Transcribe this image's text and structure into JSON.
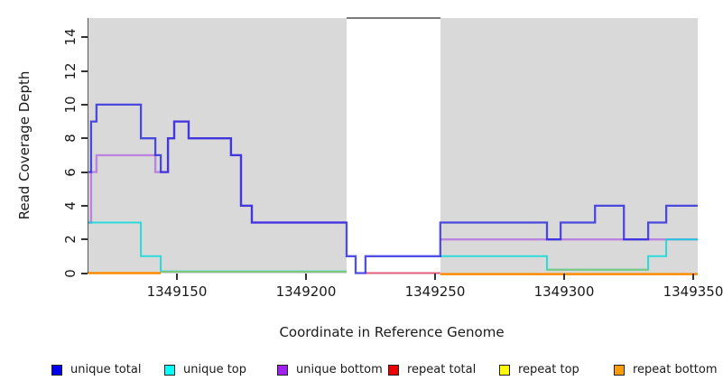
{
  "y_axis": {
    "title": "Read Coverage Depth",
    "ticks": [
      0,
      2,
      4,
      6,
      8,
      10,
      12,
      14
    ]
  },
  "x_axis": {
    "title": "Coordinate in Reference Genome",
    "ticks": [
      1349150,
      1349200,
      1349250,
      1349300,
      1349350
    ]
  },
  "legend": {
    "items": [
      {
        "label": "unique total",
        "color": "#0000ee",
        "x": 57
      },
      {
        "label": "unique top",
        "color": "#00ffff",
        "x": 182
      },
      {
        "label": "unique bottom",
        "color": "#a020f0",
        "x": 307
      },
      {
        "label": "repeat total",
        "color": "#ee0000",
        "x": 430
      },
      {
        "label": "repeat top",
        "color": "#ffff00",
        "x": 553
      },
      {
        "label": "repeat bottom",
        "color": "#ff9d00",
        "x": 680
      }
    ]
  },
  "chart_data": {
    "type": "line",
    "style": "step",
    "title": "",
    "xlabel": "Coordinate in Reference Genome",
    "ylabel": "Read Coverage Depth",
    "x_range": [
      1349115.4,
      1349351.4
    ],
    "y_range": [
      0,
      15.1
    ],
    "panel_bg": "#d9d9d9",
    "grid": false,
    "highlight_band": {
      "meaning": "repeat-region (white mask over panel)",
      "x_start": 1349215.4,
      "x_end": 1349251.7,
      "fill": "#ffffff",
      "top_border_color": "#7a7a7a"
    },
    "series": [
      {
        "name": "repeat bottom (left)",
        "color": "#ff8c00",
        "width": 2.5,
        "opacity": 1,
        "segments": [
          [
            [
              1349115.4,
              0
            ],
            [
              1349143.4,
              0
            ]
          ]
        ]
      },
      {
        "name": "repeat bottom (right)",
        "color": "#ff8c00",
        "width": 2.5,
        "opacity": 1,
        "segments": [
          [
            [
              1349251.7,
              -0.06
            ],
            [
              1349351.4,
              -0.06
            ]
          ]
        ]
      },
      {
        "name": "repeat total (band floor)",
        "color": "#dd5f80",
        "width": 2,
        "opacity": 1,
        "segments": [
          [
            [
              1349222.7,
              0
            ],
            [
              1349251.7,
              0
            ]
          ]
        ]
      },
      {
        "name": "unique bottom",
        "color": "#a84fe0",
        "width": 2.4,
        "opacity": 0.62,
        "segments": [
          [
            [
              1349115.4,
              3
            ],
            [
              1349116.4,
              6
            ],
            [
              1349118.5,
              7
            ],
            [
              1349141.3,
              6
            ],
            [
              1349146.2,
              8
            ],
            [
              1349148.6,
              9
            ],
            [
              1349154.2,
              8
            ],
            [
              1349170.6,
              7
            ],
            [
              1349174.5,
              4
            ],
            [
              1349178.7,
              3
            ],
            [
              1349215.4,
              3
            ]
          ],
          [
            [
              1349251.7,
              2
            ],
            [
              1349351.4,
              2
            ]
          ]
        ]
      },
      {
        "name": "unique top",
        "color": "#00d8d8",
        "width": 2,
        "opacity": 0.8,
        "segments": [
          [
            [
              1349115.4,
              3
            ],
            [
              1349135.7,
              1
            ],
            [
              1349143.4,
              0.1
            ],
            [
              1349215.4,
              0.1
            ]
          ],
          [
            [
              1349251.7,
              1
            ],
            [
              1349293.0,
              0.2
            ],
            [
              1349332.2,
              1
            ],
            [
              1349339.2,
              2
            ],
            [
              1349351.4,
              2
            ]
          ]
        ]
      },
      {
        "name": "unique top + repeat top overlap (mid)",
        "color": "#7cc87c",
        "width": 2,
        "opacity": 1,
        "segments": [
          [
            [
              1349143.4,
              0.08
            ],
            [
              1349215.4,
              0.08
            ]
          ]
        ]
      },
      {
        "name": "unique top + repeat top overlap (right)",
        "color": "#7cc87c",
        "width": 2,
        "opacity": 1,
        "segments": [
          [
            [
              1349293.0,
              0.2
            ],
            [
              1349332.2,
              0.2
            ]
          ]
        ]
      },
      {
        "name": "unique total",
        "color": "#2424dd",
        "width": 2.3,
        "opacity": 0.8,
        "segments": [
          [
            [
              1349115.4,
              6
            ],
            [
              1349116.4,
              9
            ],
            [
              1349118.5,
              10
            ],
            [
              1349135.7,
              8
            ],
            [
              1349141.3,
              7
            ],
            [
              1349143.4,
              6
            ],
            [
              1349146.2,
              8
            ],
            [
              1349148.6,
              9
            ],
            [
              1349154.2,
              8
            ],
            [
              1349170.6,
              7
            ],
            [
              1349174.5,
              4
            ],
            [
              1349178.7,
              3
            ],
            [
              1349215.4,
              1
            ],
            [
              1349218.9,
              0
            ],
            [
              1349222.7,
              1
            ],
            [
              1349251.7,
              3
            ],
            [
              1349293.0,
              2
            ],
            [
              1349298.3,
              3
            ],
            [
              1349311.6,
              4
            ],
            [
              1349322.8,
              2
            ],
            [
              1349332.2,
              3
            ],
            [
              1349339.2,
              4
            ],
            [
              1349351.4,
              4
            ]
          ]
        ]
      }
    ]
  }
}
